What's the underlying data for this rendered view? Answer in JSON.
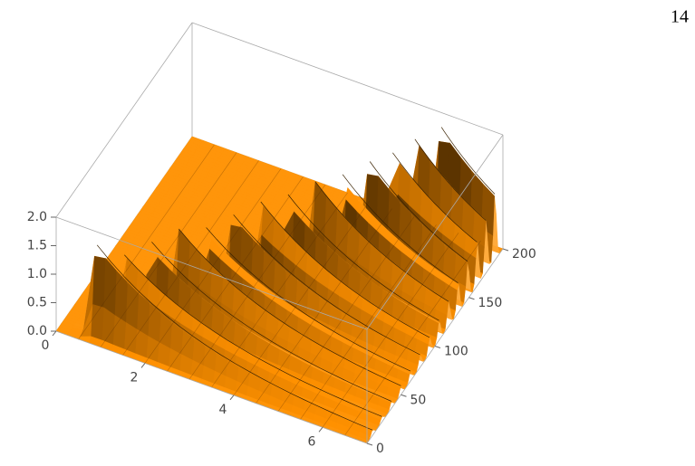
{
  "page_number": "14",
  "chart_data": {
    "type": "surface",
    "xlim": [
      0,
      7
    ],
    "xticks": [
      0,
      2,
      4,
      6
    ],
    "ylim": [
      0,
      200
    ],
    "yticks": [
      0,
      50,
      100,
      150,
      200
    ],
    "zlim": [
      0,
      2
    ],
    "zticks": [
      {
        "value": 0,
        "label": "0.0"
      },
      {
        "value": 0.5,
        "label": "0.5"
      },
      {
        "value": 1,
        "label": "1.0"
      },
      {
        "value": 1.5,
        "label": "1.5"
      },
      {
        "value": 2,
        "label": "2.0"
      }
    ],
    "color": "#ff9a1a",
    "ridges": [
      {
        "x": 0.8,
        "y": 8,
        "peak": 1.6
      },
      {
        "x": 1.2,
        "y": 22,
        "peak": 1.3
      },
      {
        "x": 1.6,
        "y": 36,
        "peak": 1.4
      },
      {
        "x": 2.0,
        "y": 50,
        "peak": 1.5
      },
      {
        "x": 2.4,
        "y": 64,
        "peak": 1.4
      },
      {
        "x": 2.8,
        "y": 78,
        "peak": 1.5
      },
      {
        "x": 3.2,
        "y": 92,
        "peak": 1.6
      },
      {
        "x": 3.6,
        "y": 106,
        "peak": 1.6
      },
      {
        "x": 4.0,
        "y": 120,
        "peak": 1.7
      },
      {
        "x": 4.4,
        "y": 134,
        "peak": 1.7
      },
      {
        "x": 4.8,
        "y": 148,
        "peak": 1.8
      },
      {
        "x": 5.1,
        "y": 162,
        "peak": 1.8
      },
      {
        "x": 5.4,
        "y": 175,
        "peak": 1.9
      },
      {
        "x": 5.8,
        "y": 188,
        "peak": 2.0
      }
    ]
  }
}
